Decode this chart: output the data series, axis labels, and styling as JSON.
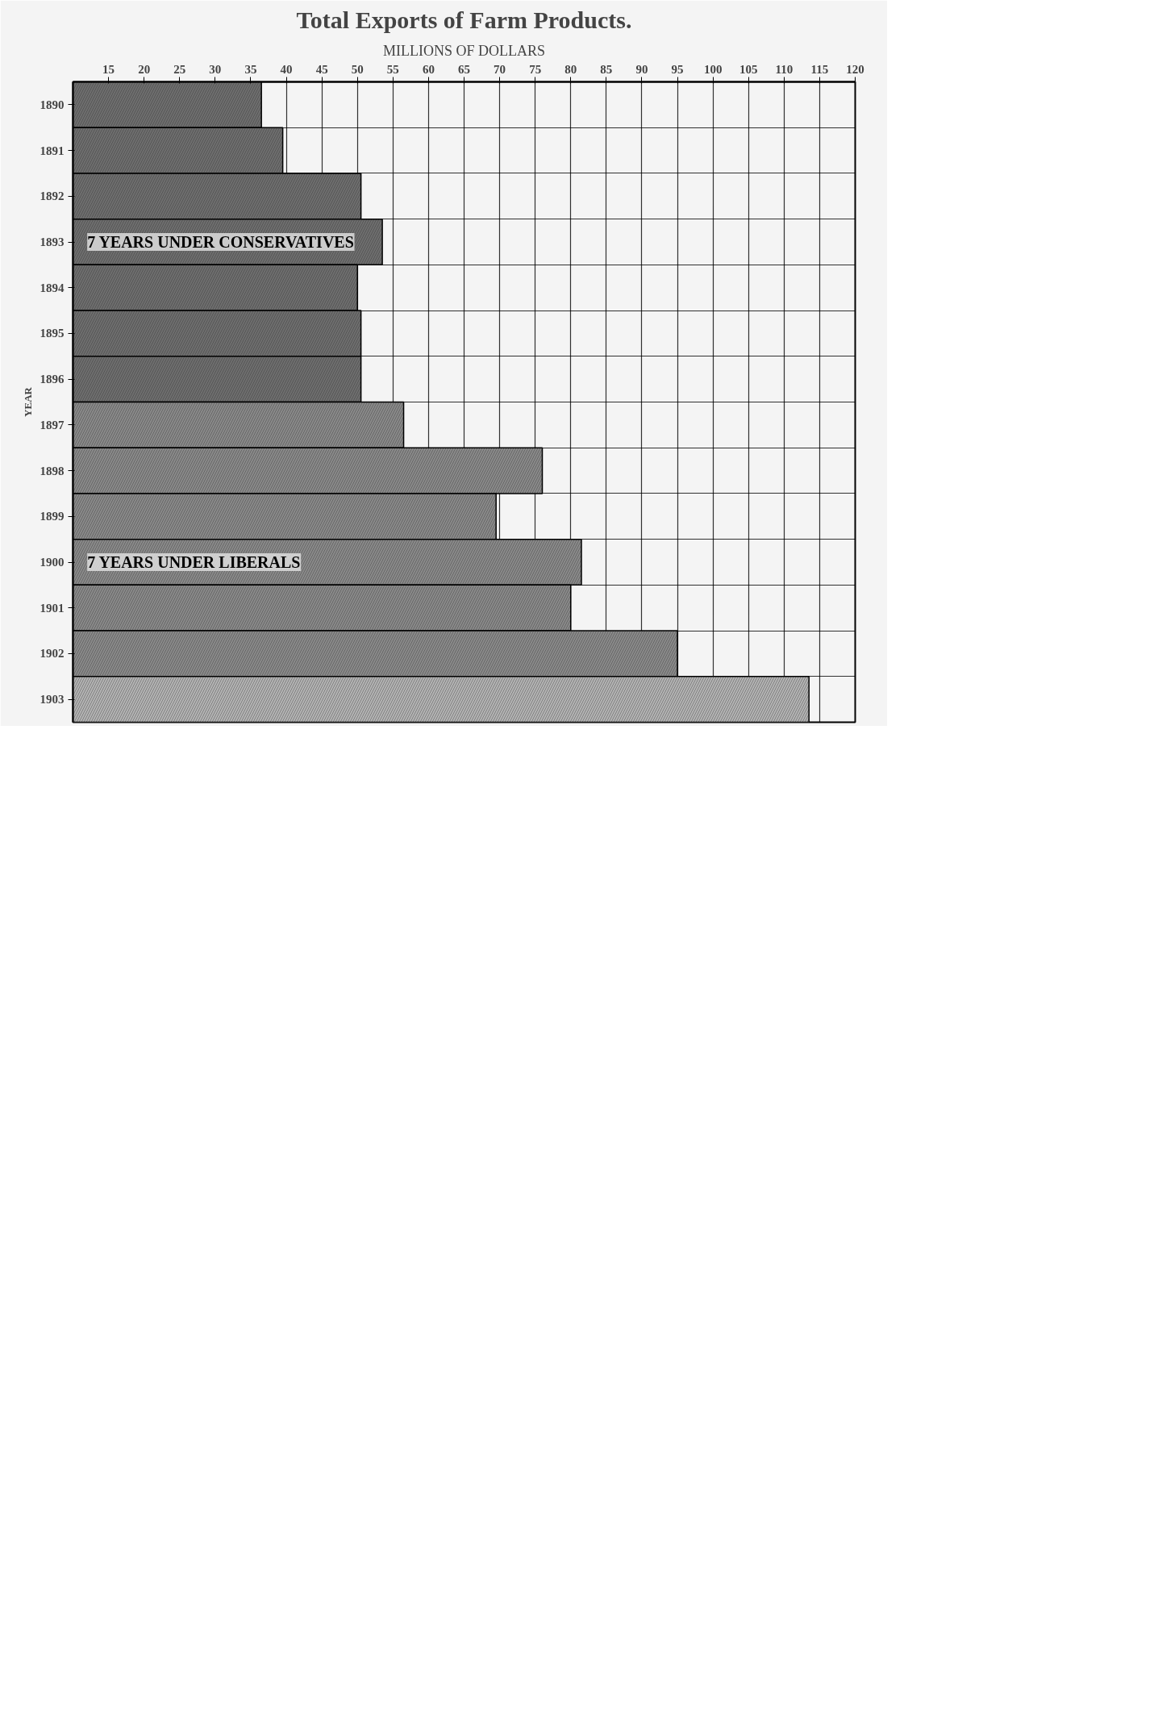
{
  "chart_data": {
    "type": "bar",
    "orientation": "horizontal",
    "title": "Total Exports of Farm Products.",
    "subtitle": "MILLIONS OF DOLLARS",
    "ylabel": "YEAR",
    "categories": [
      "1890",
      "1891",
      "1892",
      "1893",
      "1894",
      "1895",
      "1896",
      "1897",
      "1898",
      "1899",
      "1900",
      "1901",
      "1902",
      "1903"
    ],
    "values": [
      36.5,
      39.5,
      50.5,
      53.5,
      50,
      50.5,
      50.5,
      56.5,
      76,
      69.5,
      81.5,
      80,
      95,
      113.5
    ],
    "colors": [
      "#6e6e6e",
      "#6e6e6e",
      "#6e6e6e",
      "#6e6e6e",
      "#6e6e6e",
      "#6e6e6e",
      "#6e6e6e",
      "#8a8a8a",
      "#8a8a8a",
      "#8a8a8a",
      "#8a8a8a",
      "#8a8a8a",
      "#8a8a8a",
      "#b4b4b4"
    ],
    "xlim": [
      10,
      120
    ],
    "xticks": [
      15,
      20,
      25,
      30,
      35,
      40,
      45,
      50,
      55,
      60,
      65,
      70,
      75,
      80,
      85,
      90,
      95,
      100,
      105,
      110,
      115,
      120
    ],
    "grid": true,
    "annotations": [
      {
        "text": "7 YEARS UNDER CONSERVATIVES",
        "x": 12,
        "y": "1893"
      },
      {
        "text": "7 YEARS UNDER LIBERALS",
        "x": 12,
        "y": "1900"
      }
    ]
  }
}
